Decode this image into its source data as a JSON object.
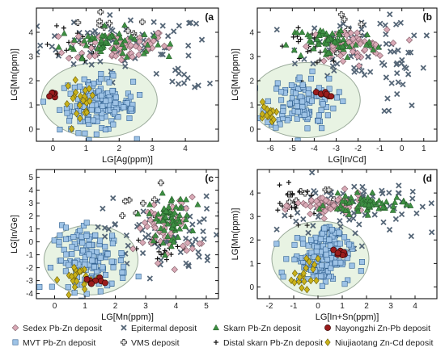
{
  "colors": {
    "sedex": "#d9a9b6",
    "mvt": "#9ec3e6",
    "epithermal": "#556677",
    "vms": "#333333",
    "skarn": "#3e8f43",
    "distal": "#111111",
    "nayongzhi": "#9b1c1c",
    "niujiaotang": "#c9b21a",
    "ellipse_fill": "#e8f3e3",
    "ellipse_stroke": "#9aaa9a"
  },
  "legend": [
    {
      "key": "sedex",
      "label": "Sedex Pb-Zn deposit",
      "marker": "diamond"
    },
    {
      "key": "epithermal",
      "label": "Epitermal  deposit",
      "marker": "x"
    },
    {
      "key": "skarn",
      "label": "Skarn Pb-Zn deposit",
      "marker": "triangle"
    },
    {
      "key": "nayongzhi",
      "label": "Nayongzhi Zn-Pb deposit",
      "marker": "circle"
    },
    {
      "key": "mvt",
      "label": "MVT Pb-Zn deposit",
      "marker": "square"
    },
    {
      "key": "vms",
      "label": "VMS deposit",
      "marker": "plus-outline"
    },
    {
      "key": "distal",
      "label": "Distal skarn Pb-Zn deposit",
      "marker": "plus"
    },
    {
      "key": "niujiaotang",
      "label": "Niujiaotang Zn-Cd deposit",
      "marker": "diamond"
    }
  ],
  "chart_data": [
    {
      "type": "scatter",
      "panel": "(a",
      "xlabel": "LG[Ag(ppm)]",
      "ylabel": "LG[Mn(ppm)]",
      "xlim": [
        -0.5,
        5
      ],
      "ylim": [
        -0.5,
        5
      ],
      "xticks": [
        0,
        1,
        2,
        3,
        4
      ],
      "yticks": [
        0,
        1,
        2,
        3,
        4
      ],
      "ellipse": {
        "cx": 1.4,
        "cy": 1.2,
        "rx": 1.75,
        "ry": 1.55
      },
      "clusters": [
        {
          "series": "mvt",
          "cx": 1.3,
          "cy": 1.0,
          "sx": 0.55,
          "sy": 0.55,
          "n": 120
        },
        {
          "series": "mvt",
          "cx": 1.9,
          "cy": 0.95,
          "sx": 0.45,
          "sy": 0.3,
          "n": 40
        },
        {
          "series": "sedex",
          "cx": 2.0,
          "cy": 3.45,
          "sx": 0.8,
          "sy": 0.35,
          "n": 70
        },
        {
          "series": "skarn",
          "cx": 1.6,
          "cy": 3.6,
          "sx": 0.7,
          "sy": 0.3,
          "n": 55
        },
        {
          "series": "epithermal",
          "cx": 2.2,
          "cy": 3.5,
          "sx": 1.3,
          "sy": 0.6,
          "n": 70
        },
        {
          "series": "epithermal",
          "cx": 4.0,
          "cy": 2.0,
          "sx": 0.35,
          "sy": 0.2,
          "n": 10
        },
        {
          "series": "vms",
          "cx": 1.5,
          "cy": 4.0,
          "sx": 0.8,
          "sy": 0.5,
          "n": 12
        },
        {
          "series": "distal",
          "cx": 0.7,
          "cy": 3.4,
          "sx": 0.5,
          "sy": 0.4,
          "n": 14
        },
        {
          "series": "niujiaotang",
          "cx": 0.8,
          "cy": 0.9,
          "sx": 0.25,
          "sy": 0.6,
          "n": 22
        },
        {
          "series": "nayongzhi",
          "cx": 0.0,
          "cy": 1.4,
          "sx": 0.04,
          "sy": 0.05,
          "n": 6
        }
      ]
    },
    {
      "type": "scatter",
      "panel": "(b",
      "xlabel": "LG[In/Cd]",
      "ylabel": "LG[Mn(ppm)]",
      "xlim": [
        -6.6,
        1.6
      ],
      "ylim": [
        -0.5,
        5
      ],
      "xticks": [
        -6,
        -5,
        -4,
        -3,
        -2,
        -1,
        0,
        1
      ],
      "yticks": [
        0,
        1,
        2,
        3,
        4
      ],
      "ellipse": {
        "cx": -4.4,
        "cy": 1.2,
        "rx": 2.5,
        "ry": 1.55
      },
      "clusters": [
        {
          "series": "mvt",
          "cx": -4.6,
          "cy": 1.1,
          "sx": 0.8,
          "sy": 0.55,
          "n": 110
        },
        {
          "series": "sedex",
          "cx": -2.5,
          "cy": 3.4,
          "sx": 0.9,
          "sy": 0.35,
          "n": 55
        },
        {
          "series": "skarn",
          "cx": -3.2,
          "cy": 3.6,
          "sx": 1.0,
          "sy": 0.35,
          "n": 60
        },
        {
          "series": "epithermal",
          "cx": -2.0,
          "cy": 3.4,
          "sx": 1.3,
          "sy": 0.7,
          "n": 70
        },
        {
          "series": "epithermal",
          "cx": 0.2,
          "cy": 2.2,
          "sx": 0.6,
          "sy": 0.7,
          "n": 20
        },
        {
          "series": "distal",
          "cx": -4.3,
          "cy": 3.4,
          "sx": 0.5,
          "sy": 0.35,
          "n": 18
        },
        {
          "series": "vms",
          "cx": -3.0,
          "cy": 4.1,
          "sx": 0.8,
          "sy": 0.4,
          "n": 10
        },
        {
          "series": "niujiaotang",
          "cx": -6.2,
          "cy": 0.6,
          "sx": 0.2,
          "sy": 0.3,
          "n": 14
        },
        {
          "series": "nayongzhi",
          "cx": -3.6,
          "cy": 1.45,
          "sx": 0.25,
          "sy": 0.05,
          "n": 9
        }
      ]
    },
    {
      "type": "scatter",
      "panel": "(c",
      "xlabel": "LG[Mn(ppm)]",
      "ylabel": "LG[In/Ge]",
      "xlim": [
        -0.6,
        5.4
      ],
      "ylim": [
        -4.4,
        5.6
      ],
      "xticks": [
        0,
        1,
        2,
        3,
        4,
        5
      ],
      "yticks": [
        -4,
        -3,
        -2,
        -1,
        0,
        1,
        2,
        3,
        4,
        5
      ],
      "ellipse": {
        "cx": 1.2,
        "cy": -1.4,
        "rx": 1.55,
        "ry": 2.7
      },
      "clusters": [
        {
          "series": "mvt",
          "cx": 1.2,
          "cy": -1.4,
          "sx": 0.6,
          "sy": 1.2,
          "n": 130
        },
        {
          "series": "sedex",
          "cx": 3.7,
          "cy": 1.0,
          "sx": 0.5,
          "sy": 1.2,
          "n": 60
        },
        {
          "series": "skarn",
          "cx": 3.8,
          "cy": 1.8,
          "sx": 0.35,
          "sy": 0.9,
          "n": 65
        },
        {
          "series": "epithermal",
          "cx": 3.6,
          "cy": 0.5,
          "sx": 1.0,
          "sy": 1.5,
          "n": 65
        },
        {
          "series": "distal",
          "cx": 3.6,
          "cy": -0.6,
          "sx": 0.4,
          "sy": 0.5,
          "n": 18
        },
        {
          "series": "vms",
          "cx": 3.0,
          "cy": 2.0,
          "sx": 0.6,
          "sy": 1.2,
          "n": 10
        },
        {
          "series": "niujiaotang",
          "cx": 0.8,
          "cy": -2.8,
          "sx": 0.3,
          "sy": 0.6,
          "n": 22
        },
        {
          "series": "nayongzhi",
          "cx": 1.25,
          "cy": -3.1,
          "sx": 0.15,
          "sy": 0.25,
          "n": 9
        }
      ]
    },
    {
      "type": "scatter",
      "panel": "(d",
      "xlabel": "LG[In+Sn(ppm)]",
      "ylabel": "LG[Mn(ppm)]",
      "xlim": [
        -2.5,
        4.9
      ],
      "ylim": [
        -0.5,
        5
      ],
      "xticks": [
        -2,
        -1,
        0,
        1,
        2,
        3,
        4
      ],
      "yticks": [
        0,
        1,
        2,
        3,
        4
      ],
      "ellipse": {
        "cx": 0.1,
        "cy": 1.2,
        "rx": 2.0,
        "ry": 1.6
      },
      "clusters": [
        {
          "series": "mvt",
          "cx": 0.1,
          "cy": 1.2,
          "sx": 0.6,
          "sy": 0.5,
          "n": 140
        },
        {
          "series": "mvt",
          "cx": 0.3,
          "cy": 2.2,
          "sx": 0.3,
          "sy": 0.2,
          "n": 25
        },
        {
          "series": "sedex",
          "cx": 0.5,
          "cy": 3.45,
          "sx": 0.7,
          "sy": 0.25,
          "n": 60
        },
        {
          "series": "skarn",
          "cx": 2.0,
          "cy": 3.5,
          "sx": 0.8,
          "sy": 0.2,
          "n": 60
        },
        {
          "series": "epithermal",
          "cx": 1.5,
          "cy": 3.3,
          "sx": 1.6,
          "sy": 0.7,
          "n": 75
        },
        {
          "series": "distal",
          "cx": -1.0,
          "cy": 3.5,
          "sx": 0.5,
          "sy": 0.35,
          "n": 20
        },
        {
          "series": "vms",
          "cx": -0.5,
          "cy": 4.0,
          "sx": 0.7,
          "sy": 0.4,
          "n": 10
        },
        {
          "series": "niujiaotang",
          "cx": -0.5,
          "cy": 0.4,
          "sx": 0.25,
          "sy": 0.4,
          "n": 18
        },
        {
          "series": "nayongzhi",
          "cx": 0.95,
          "cy": 1.45,
          "sx": 0.12,
          "sy": 0.08,
          "n": 9
        }
      ]
    }
  ]
}
